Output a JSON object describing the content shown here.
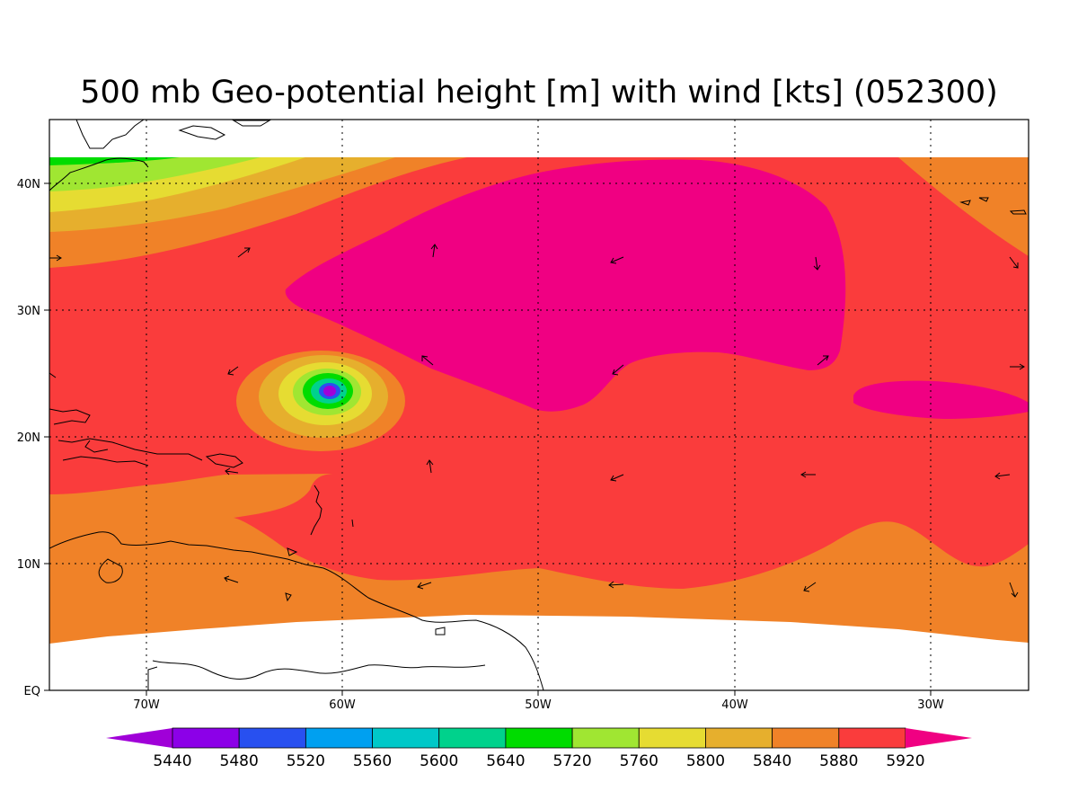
{
  "title": "500 mb Geo-potential height [m] with wind [kts] (052300)",
  "x_axis": {
    "tick_labels": [
      "70W",
      "60W",
      "50W",
      "40W",
      "30W"
    ],
    "tick_lons": [
      -70,
      -60,
      -50,
      -40,
      -30
    ],
    "range_lon": [
      -75,
      -25
    ]
  },
  "y_axis": {
    "tick_labels": [
      "EQ",
      "10N",
      "20N",
      "30N",
      "40N"
    ],
    "tick_lats": [
      0,
      10,
      20,
      30,
      40
    ],
    "range_lat": [
      0,
      45
    ]
  },
  "colorbar": {
    "labels": [
      "5440",
      "5480",
      "5520",
      "5560",
      "5600",
      "5640",
      "5720",
      "5760",
      "5800",
      "5840",
      "5880",
      "5920"
    ],
    "colors": [
      "#a000d8",
      "#8c00e8",
      "#2850f0",
      "#00a0f0",
      "#00c8c8",
      "#00d28c",
      "#00dc00",
      "#a0e632",
      "#e6dc32",
      "#e6af2d",
      "#f08228",
      "#fa3c3c",
      "#f00082"
    ],
    "extend": "both"
  },
  "colors": {
    "background": "#ffffff",
    "missing": "#ffffff",
    "level_5880": "#f08228",
    "level_5920": "#fa3c3c",
    "level_above_5920": "#f00082"
  },
  "features": {
    "grid": "dotted",
    "coastlines": true,
    "wind_vectors": true,
    "low_center_lon": -60.6,
    "low_center_lat": 23.6
  }
}
